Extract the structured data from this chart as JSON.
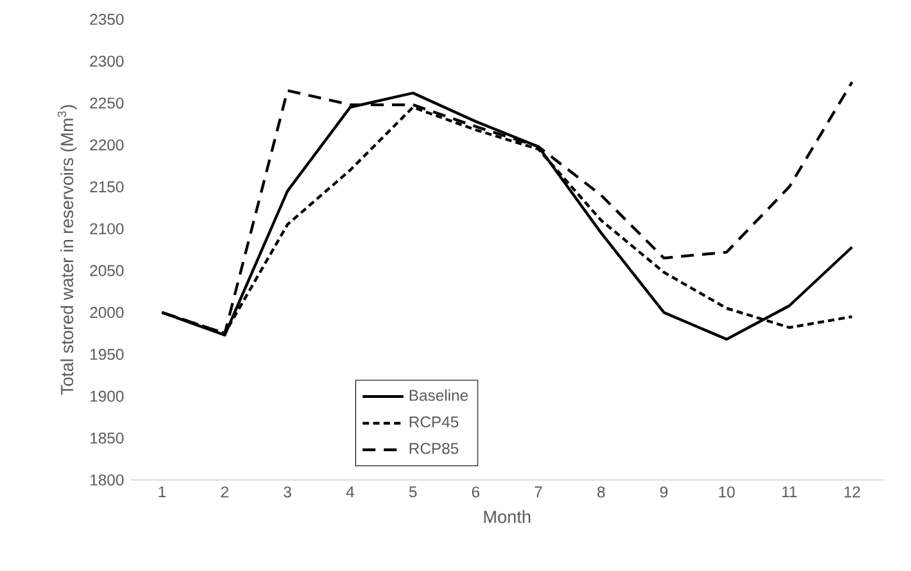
{
  "chart_data": {
    "type": "line",
    "xlabel": "Month",
    "ylabel": "Total stored water in reservoirs (Mm$^{3}$)",
    "categories": [
      "1",
      "2",
      "3",
      "4",
      "5",
      "6",
      "7",
      "8",
      "9",
      "10",
      "11",
      "12"
    ],
    "ylim": [
      1800,
      2350
    ],
    "yticks": [
      1800,
      1850,
      1900,
      1950,
      2000,
      2050,
      2100,
      2150,
      2200,
      2250,
      2300,
      2350
    ],
    "legend": "bottom",
    "marker": "none",
    "series": [
      {
        "name": "Baseline",
        "color": "#000000",
        "line_style": "solid",
        "values": [
          2000,
          1973,
          2145,
          2245,
          2262,
          2228,
          2198,
          2095,
          2000,
          1968,
          2008,
          2078
        ]
      },
      {
        "name": "RCP45",
        "color": "#000000",
        "line_style": "dotted",
        "values": [
          2000,
          1975,
          2105,
          2170,
          2245,
          2218,
          2195,
          2110,
          2048,
          2005,
          1982,
          1995
        ]
      },
      {
        "name": "RCP85",
        "color": "#000000",
        "line_style": "dashed",
        "values": [
          2000,
          1975,
          2265,
          2248,
          2248,
          2222,
          2198,
          2140,
          2065,
          2072,
          2150,
          2275
        ]
      }
    ]
  }
}
